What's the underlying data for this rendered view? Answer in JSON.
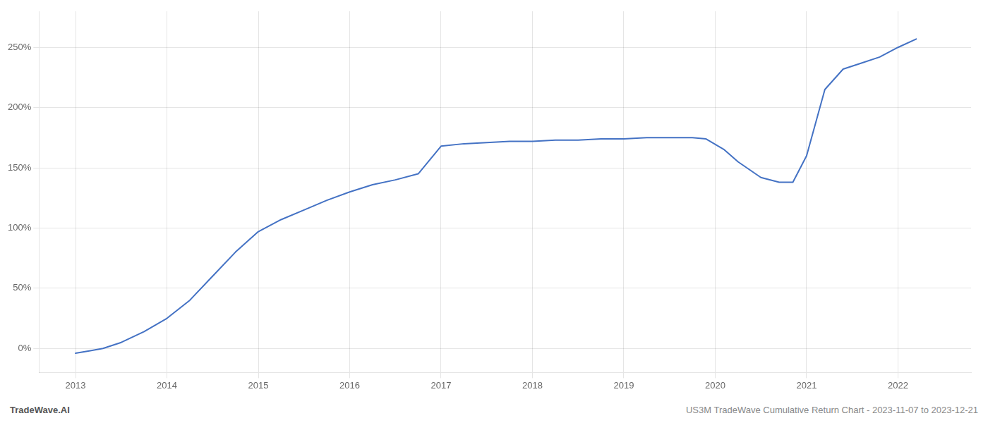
{
  "chart_data": {
    "type": "line",
    "x": [
      2013.0,
      2013.15,
      2013.3,
      2013.5,
      2013.75,
      2014.0,
      2014.25,
      2014.5,
      2014.75,
      2015.0,
      2015.25,
      2015.5,
      2015.75,
      2016.0,
      2016.25,
      2016.5,
      2016.75,
      2017.0,
      2017.25,
      2017.5,
      2017.75,
      2018.0,
      2018.25,
      2018.5,
      2018.75,
      2019.0,
      2019.25,
      2019.5,
      2019.75,
      2019.9,
      2020.1,
      2020.25,
      2020.5,
      2020.7,
      2020.85,
      2021.0,
      2021.2,
      2021.4,
      2021.6,
      2021.8,
      2022.0,
      2022.2
    ],
    "values": [
      -4,
      -2,
      0,
      5,
      14,
      25,
      40,
      60,
      80,
      97,
      107,
      115,
      123,
      130,
      136,
      140,
      145,
      168,
      170,
      171,
      172,
      172,
      173,
      173,
      174,
      174,
      175,
      175,
      175,
      174,
      165,
      155,
      142,
      138,
      138,
      160,
      215,
      232,
      237,
      242,
      250,
      257
    ],
    "color": "#4472c4",
    "xlim": [
      2012.6,
      2022.8
    ],
    "xticks": [
      2013,
      2014,
      2015,
      2016,
      2017,
      2018,
      2019,
      2020,
      2021,
      2022
    ],
    "ylim": [
      -20,
      280
    ],
    "yticks": [
      {
        "value": 0,
        "label": "0%"
      },
      {
        "value": 50,
        "label": "50%"
      },
      {
        "value": 100,
        "label": "100%"
      },
      {
        "value": 150,
        "label": "150%"
      },
      {
        "value": 200,
        "label": "200%"
      },
      {
        "value": 250,
        "label": "250%"
      }
    ],
    "annotations": [
      "TradeWave.AI",
      "US3M TradeWave Cumulative Return Chart - 2023-11-07 to 2023-12-21"
    ],
    "grid": true
  }
}
